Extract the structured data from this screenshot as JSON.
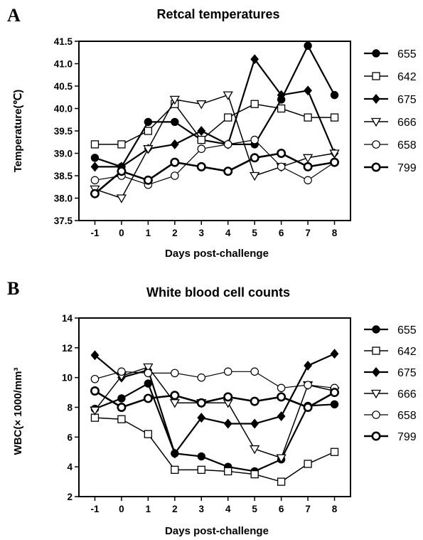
{
  "panels": [
    {
      "letter": "A",
      "chart_data": {
        "type": "line",
        "title": "Retcal temperatures",
        "xlabel": "Days post-challenge",
        "ylabel": "Temperature(℃)",
        "x": [
          -1,
          0,
          1,
          2,
          3,
          4,
          5,
          6,
          7,
          8
        ],
        "xlim": [
          -1.6,
          8.6
        ],
        "ylim": [
          37.5,
          41.5
        ],
        "yticks": [
          37.5,
          38.0,
          38.5,
          39.0,
          39.5,
          40.0,
          40.5,
          41.0,
          41.5
        ],
        "ytick_labels": [
          "37.5",
          "38.0",
          "38.5",
          "39.0",
          "39.5",
          "40.0",
          "40.5",
          "41.0",
          "41.5"
        ],
        "xtick_labels": [
          "-1",
          "0",
          "1",
          "2",
          "3",
          "4",
          "5",
          "6",
          "7",
          "8"
        ],
        "grid": false,
        "legend_position": "right",
        "series": [
          {
            "name": "655",
            "marker": "filled-circle",
            "values": [
              38.9,
              38.7,
              39.7,
              39.7,
              39.3,
              39.2,
              39.2,
              40.2,
              41.4,
              40.3
            ]
          },
          {
            "name": "642",
            "marker": "open-square",
            "values": [
              39.2,
              39.2,
              39.5,
              40.1,
              39.3,
              39.8,
              40.1,
              40.0,
              39.8,
              39.8
            ]
          },
          {
            "name": "675",
            "marker": "filled-diamond",
            "values": [
              38.7,
              38.7,
              39.1,
              39.2,
              39.5,
              39.2,
              41.1,
              40.3,
              40.4,
              39.0
            ]
          },
          {
            "name": "666",
            "marker": "open-triangle-down",
            "values": [
              38.2,
              38.0,
              39.1,
              40.2,
              40.1,
              40.3,
              38.5,
              38.7,
              38.9,
              39.0
            ]
          },
          {
            "name": "658",
            "marker": "open-circle",
            "values": [
              38.4,
              38.5,
              38.3,
              38.5,
              39.1,
              39.2,
              39.3,
              38.7,
              38.4,
              38.8
            ]
          },
          {
            "name": "799",
            "marker": "thick-open-circle",
            "values": [
              38.1,
              38.6,
              38.4,
              38.8,
              38.7,
              38.6,
              38.9,
              39.0,
              38.7,
              38.8
            ]
          }
        ]
      }
    },
    {
      "letter": "B",
      "chart_data": {
        "type": "line",
        "title": "White blood cell counts",
        "xlabel": "Days post-challenge",
        "ylabel": "WBC(× 1000/mm³",
        "x": [
          -1,
          0,
          1,
          2,
          3,
          4,
          5,
          6,
          7,
          8
        ],
        "xlim": [
          -1.6,
          8.6
        ],
        "ylim": [
          2,
          14
        ],
        "yticks": [
          2,
          4,
          6,
          8,
          10,
          12,
          14
        ],
        "ytick_labels": [
          "2",
          "4",
          "6",
          "8",
          "10",
          "12",
          "14"
        ],
        "xtick_labels": [
          "-1",
          "0",
          "1",
          "2",
          "3",
          "4",
          "5",
          "6",
          "7",
          "8"
        ],
        "grid": false,
        "legend_position": "right",
        "series": [
          {
            "name": "655",
            "marker": "filled-circle",
            "values": [
              7.9,
              8.6,
              9.6,
              4.9,
              4.7,
              4.0,
              3.7,
              4.5,
              8.1,
              8.2
            ]
          },
          {
            "name": "642",
            "marker": "open-square",
            "values": [
              7.3,
              7.2,
              6.2,
              3.8,
              3.8,
              3.7,
              3.5,
              3.0,
              4.2,
              5.0
            ]
          },
          {
            "name": "675",
            "marker": "filled-diamond",
            "values": [
              11.5,
              10.0,
              10.5,
              4.9,
              7.3,
              6.9,
              6.9,
              7.4,
              10.8,
              11.6
            ]
          },
          {
            "name": "666",
            "marker": "open-triangle-down",
            "values": [
              7.8,
              10.1,
              10.7,
              8.3,
              8.3,
              8.3,
              5.2,
              4.6,
              9.5,
              9.1
            ]
          },
          {
            "name": "658",
            "marker": "open-circle",
            "values": [
              9.9,
              10.4,
              10.3,
              10.3,
              10.0,
              10.4,
              10.4,
              9.3,
              9.5,
              9.3
            ]
          },
          {
            "name": "799",
            "marker": "thick-open-circle",
            "values": [
              9.1,
              8.0,
              8.6,
              8.8,
              8.3,
              8.7,
              8.4,
              8.7,
              8.0,
              9.0
            ]
          }
        ]
      }
    }
  ]
}
